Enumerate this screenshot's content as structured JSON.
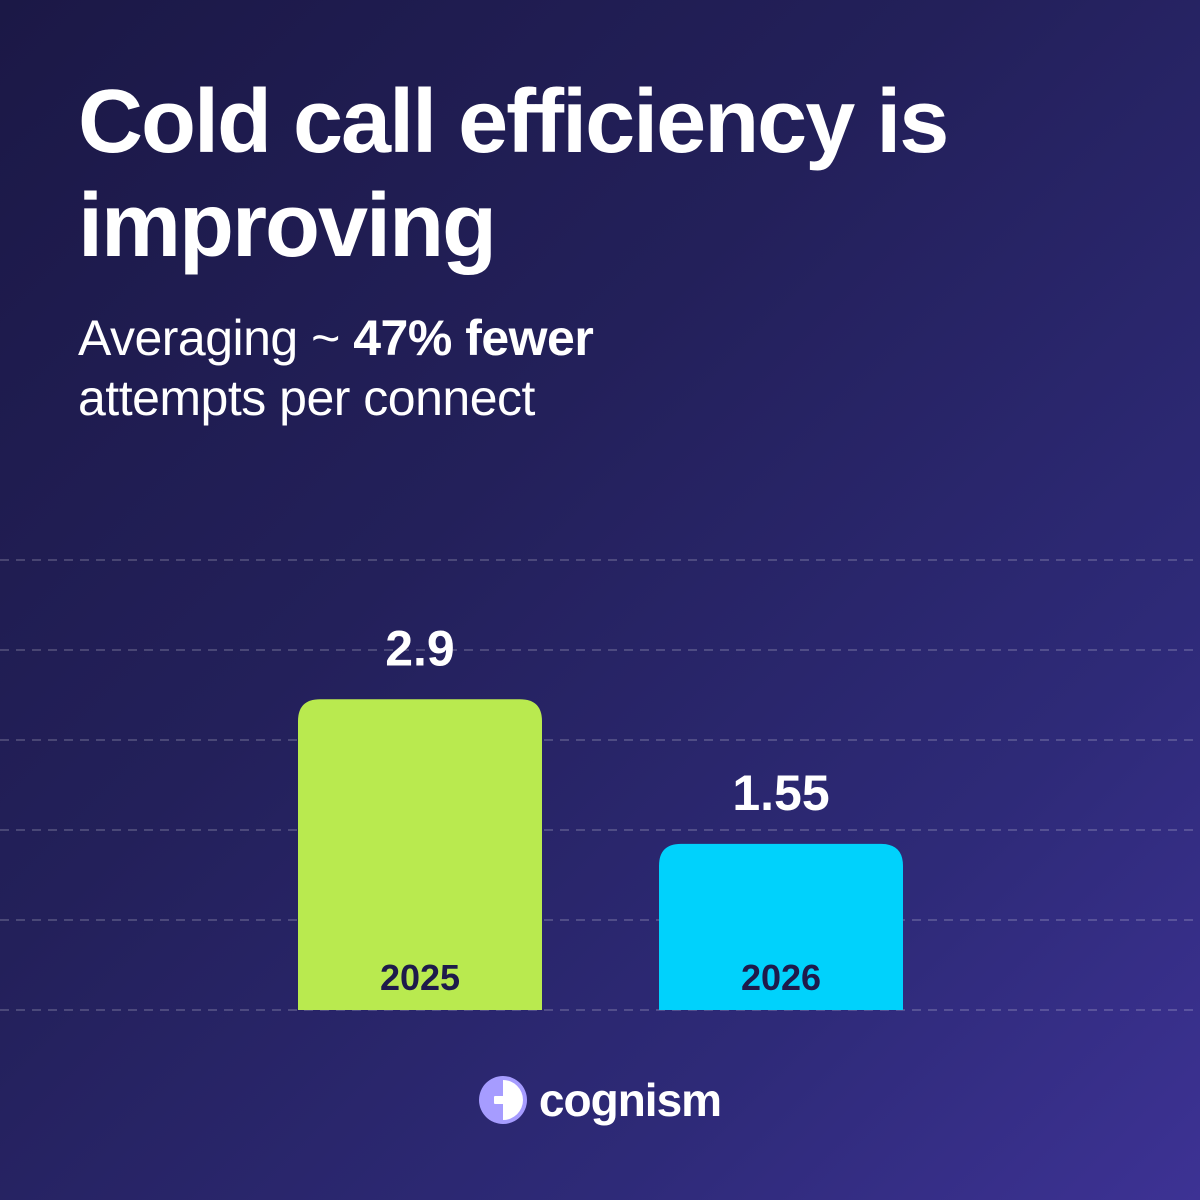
{
  "header": {
    "title": "Cold call efficiency is improving",
    "subtitle_prefix": "Averaging ~ ",
    "subtitle_emphasis": "47% fewer",
    "subtitle_suffix": "attempts per connect"
  },
  "brand": {
    "name": "cognism"
  },
  "colors": {
    "background_start": "#1b1846",
    "background_end": "#3d3294",
    "bar_2025": "#b9ea4f",
    "bar_2026": "#00d2fc",
    "category_text": "#1e1b4b",
    "logo_accent": "#a69cff"
  },
  "chart_data": {
    "type": "bar",
    "categories": [
      "2025",
      "2026"
    ],
    "values": [
      2.9,
      1.55
    ],
    "value_labels": [
      "2.9",
      "1.55"
    ],
    "title": "Cold call efficiency is improving",
    "xlabel": "",
    "ylabel": "",
    "ylim": [
      0,
      4.2
    ],
    "grid": true,
    "legend": "none"
  }
}
